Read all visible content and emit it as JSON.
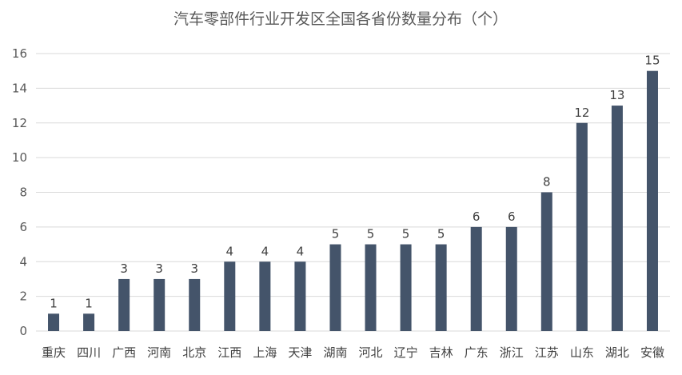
{
  "chart_data": {
    "type": "bar",
    "title": "汽车零部件行业开发区全国各省份数量分布（个）",
    "xlabel": "",
    "ylabel": "",
    "categories": [
      "重庆",
      "四川",
      "广西",
      "河南",
      "北京",
      "江西",
      "上海",
      "天津",
      "湖南",
      "河北",
      "辽宁",
      "吉林",
      "广东",
      "浙江",
      "江苏",
      "山东",
      "湖北",
      "安徽"
    ],
    "values": [
      1,
      1,
      3,
      3,
      3,
      4,
      4,
      4,
      5,
      5,
      5,
      5,
      6,
      6,
      8,
      12,
      13,
      15
    ],
    "ylim": [
      0,
      16
    ],
    "yticks": [
      0,
      2,
      4,
      6,
      8,
      10,
      12,
      14,
      16
    ],
    "grid": true,
    "legend": "none",
    "data_labels": true,
    "bar_color": "#44546a"
  }
}
